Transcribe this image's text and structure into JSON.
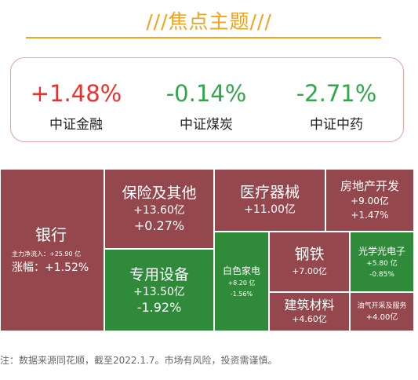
{
  "title": "///焦点主题///",
  "indices": [
    {
      "value": "+1.48%",
      "name": "中证金融",
      "trend": "up"
    },
    {
      "value": "-0.14%",
      "name": "中证煤炭",
      "trend": "down"
    },
    {
      "value": "-2.71%",
      "name": "中证中药",
      "trend": "down"
    }
  ],
  "treemap": {
    "yinhang": {
      "name": "银行",
      "flow_label": "主力净流入：+25.90 亿",
      "change_label": "涨幅：+1.52%"
    },
    "baoxian": {
      "name": "保险及其他",
      "flow": "+13.60亿",
      "change": "+0.27%"
    },
    "zhuanyong": {
      "name": "专用设备",
      "flow": "+13.50亿",
      "change": "-1.92%"
    },
    "yiliao": {
      "name": "医疗器械",
      "flow": "+11.00亿"
    },
    "baise": {
      "name": "白色家电",
      "flow": "+8.20 亿",
      "change": "-1.56%"
    },
    "gangtie": {
      "name": "钢铁",
      "flow": "+7.00亿"
    },
    "jianzhu": {
      "name": "建筑材料",
      "flow": "+4.60亿"
    },
    "fangdichan": {
      "name": "房地产开发",
      "flow": "+9.00亿",
      "change": "+1.47%"
    },
    "guangxue": {
      "name": "光学光电子",
      "flow": "+5.80 亿",
      "change": "-0.85%"
    },
    "youqi": {
      "name": "油气开采及服务",
      "flow": "+4.00亿"
    }
  },
  "colors": {
    "rise": "#94474c",
    "fall": "#2f8a3a",
    "accent": "#f0a31c"
  },
  "footnote": "注：数据来源同花顺，截至2022.1.7。市场有风险，投资需谨慎。"
}
